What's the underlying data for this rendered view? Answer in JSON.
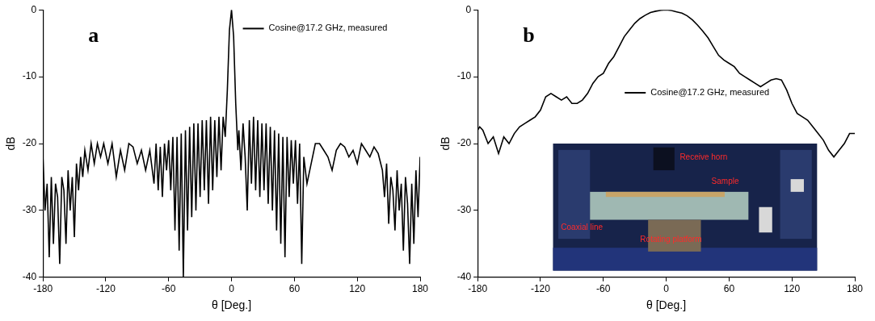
{
  "chart_data": [
    {
      "type": "line",
      "panel": "a",
      "xlabel": "θ [Deg.]",
      "ylabel": "dB",
      "xlim": [
        -180,
        180
      ],
      "xticks": [
        -180,
        -120,
        -60,
        0,
        60,
        120,
        180
      ],
      "ylim": [
        -40,
        0
      ],
      "yticks": [
        -40,
        -30,
        -20,
        -10,
        0
      ],
      "grid": false,
      "legend": "upper right",
      "x": [
        -180,
        -178,
        -176,
        -174,
        -172,
        -170,
        -168,
        -166,
        -164,
        -162,
        -160,
        -158,
        -156,
        -154,
        -152,
        -150,
        -148,
        -146,
        -144,
        -142,
        -140,
        -137,
        -134,
        -131,
        -128,
        -125,
        -122,
        -118,
        -114,
        -110,
        -106,
        -102,
        -98,
        -94,
        -90,
        -86,
        -82,
        -78,
        -74,
        -72,
        -70,
        -68,
        -66,
        -64,
        -62,
        -60,
        -58,
        -56,
        -54,
        -52,
        -50,
        -48,
        -46,
        -44,
        -42,
        -40,
        -38,
        -36,
        -34,
        -32,
        -30,
        -28,
        -26,
        -24,
        -22,
        -20,
        -18,
        -16,
        -14,
        -12,
        -10,
        -8,
        -6,
        -4,
        -2,
        0,
        2,
        4,
        6,
        7,
        9,
        11,
        13,
        15,
        17,
        19,
        21,
        23,
        25,
        27,
        29,
        31,
        33,
        35,
        37,
        39,
        41,
        43,
        45,
        47,
        49,
        51,
        53,
        55,
        57,
        59,
        61,
        63,
        65,
        67,
        69,
        72,
        76,
        80,
        84,
        88,
        92,
        96,
        100,
        104,
        108,
        112,
        116,
        120,
        124,
        128,
        132,
        136,
        140,
        144,
        146,
        148,
        150,
        152,
        154,
        156,
        158,
        160,
        162,
        164,
        166,
        168,
        170,
        172,
        174,
        176,
        178,
        180
      ],
      "series": [
        {
          "name": "Cosine@17.2 GHz, measured",
          "color": "#000000",
          "values": [
            -22,
            -30,
            -26,
            -37,
            -25,
            -35,
            -26,
            -28,
            -38,
            -25,
            -27,
            -35,
            -24,
            -30,
            -25,
            -34,
            -23,
            -27,
            -22,
            -25,
            -21,
            -24,
            -20,
            -23,
            -20,
            -22,
            -20,
            -23,
            -20,
            -25,
            -21,
            -24,
            -20,
            -20.5,
            -23,
            -21,
            -24,
            -21,
            -26,
            -20,
            -27,
            -20.5,
            -28,
            -20,
            -24,
            -19.5,
            -27,
            -19,
            -33,
            -19,
            -36,
            -18.5,
            -40,
            -18,
            -33,
            -17.5,
            -31,
            -17,
            -30,
            -17,
            -28,
            -16.5,
            -27,
            -16.5,
            -29,
            -16,
            -27,
            -16.5,
            -25,
            -16,
            -24,
            -16,
            -19,
            -12,
            -3,
            0,
            -4,
            -14,
            -21,
            -18,
            -24,
            -17,
            -22,
            -30,
            -16.5,
            -26,
            -16,
            -27,
            -16.5,
            -28,
            -17,
            -27,
            -17,
            -29,
            -17.5,
            -30,
            -18,
            -33,
            -18.5,
            -35,
            -19,
            -37,
            -19,
            -28,
            -19.5,
            -26,
            -19.5,
            -29,
            -20,
            -38,
            -22,
            -26,
            -23,
            -20,
            -20,
            -21,
            -22,
            -24,
            -21,
            -20,
            -20.5,
            -22,
            -21,
            -23,
            -20,
            -21,
            -22,
            -20.5,
            -21.5,
            -24,
            -28,
            -23,
            -32,
            -25,
            -27,
            -33,
            -24,
            -30,
            -26,
            -36,
            -25,
            -29,
            -38,
            -26,
            -35,
            -24,
            -31,
            -22
          ]
        }
      ]
    },
    {
      "type": "line",
      "panel": "b",
      "xlabel": "θ [Deg.]",
      "ylabel": "dB",
      "xlim": [
        -180,
        180
      ],
      "xticks": [
        -180,
        -120,
        -60,
        0,
        60,
        120,
        180
      ],
      "ylim": [
        -40,
        0
      ],
      "yticks": [
        -40,
        -30,
        -20,
        -10,
        0
      ],
      "grid": false,
      "legend": "center",
      "annotations": [
        "Receive horn",
        "Sample",
        "Coaxial line",
        "Rotating platform"
      ],
      "x": [
        -180,
        -178,
        -175,
        -170,
        -165,
        -160,
        -155,
        -150,
        -145,
        -140,
        -135,
        -130,
        -125,
        -120,
        -115,
        -110,
        -105,
        -100,
        -95,
        -90,
        -85,
        -80,
        -75,
        -70,
        -65,
        -60,
        -55,
        -50,
        -45,
        -40,
        -35,
        -30,
        -25,
        -20,
        -15,
        -10,
        -5,
        0,
        5,
        10,
        15,
        20,
        25,
        30,
        35,
        40,
        45,
        50,
        55,
        60,
        65,
        70,
        75,
        80,
        85,
        90,
        95,
        100,
        105,
        110,
        115,
        120,
        125,
        130,
        135,
        140,
        145,
        150,
        155,
        160,
        165,
        170,
        175,
        180
      ],
      "series": [
        {
          "name": "Cosine@17.2 GHz, measured",
          "color": "#000000",
          "values": [
            -18,
            -17.5,
            -18,
            -20,
            -19,
            -21.5,
            -19,
            -20,
            -18.5,
            -17.5,
            -17,
            -16.5,
            -16,
            -15,
            -13,
            -12.5,
            -13,
            -13.5,
            -13,
            -14,
            -14,
            -13.5,
            -12.5,
            -11,
            -10,
            -9.5,
            -8,
            -7,
            -5.5,
            -4,
            -3,
            -2,
            -1.3,
            -0.8,
            -0.4,
            -0.2,
            -0.05,
            0,
            -0.1,
            -0.3,
            -0.5,
            -0.9,
            -1.5,
            -2.3,
            -3.2,
            -4.2,
            -5.5,
            -6.8,
            -7.5,
            -8,
            -8.5,
            -9.5,
            -10,
            -10.5,
            -11,
            -11.5,
            -11,
            -10.5,
            -10.3,
            -10.5,
            -12,
            -14,
            -15.5,
            -16,
            -16.5,
            -17.5,
            -18.5,
            -19.5,
            -21,
            -22,
            -21,
            -20,
            -18.5,
            -18.5
          ]
        }
      ]
    }
  ]
}
